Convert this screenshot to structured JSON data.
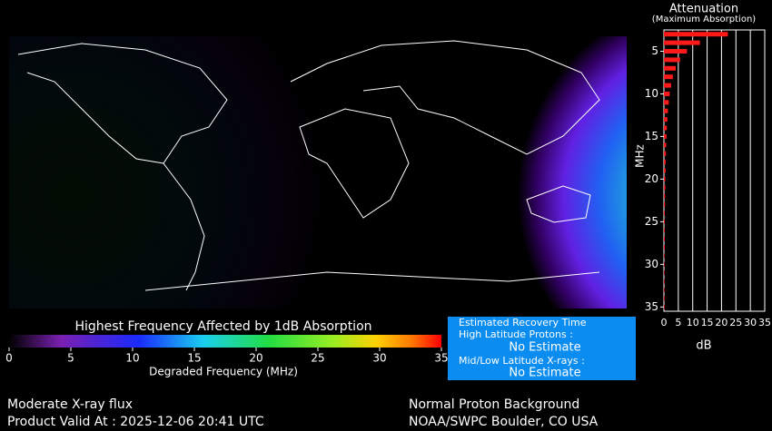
{
  "map": {
    "colorbar": {
      "title": "Highest Frequency Affected by 1dB Absorption",
      "lim": [
        0,
        35
      ],
      "ticks": [
        0,
        5,
        10,
        15,
        20,
        25,
        30,
        35
      ],
      "label": "Degraded Frequency (MHz)"
    }
  },
  "recovery": {
    "title": "Estimated Recovery Time",
    "items": [
      {
        "label": "High Latitude Protons :",
        "value": "No Estimate"
      },
      {
        "label": "Mid/Low Latitude X-rays :",
        "value": "No Estimate"
      }
    ]
  },
  "footer": {
    "left": [
      "Moderate X-ray flux",
      "Product Valid At : 2025-12-06 20:41 UTC"
    ],
    "right": [
      "Normal Proton Background",
      "NOAA/SWPC Boulder, CO USA"
    ]
  },
  "chart_data": {
    "type": "bar",
    "orientation": "horizontal",
    "title": "Attenuation",
    "subtitle": "(Maximum Absorption)",
    "x_label": "dB",
    "y_label": "MHz",
    "color": "#ff1a1a",
    "categories": [
      3,
      4,
      5,
      6,
      7,
      8,
      9,
      10,
      11,
      12,
      13,
      14,
      15,
      16,
      17,
      18,
      19,
      20,
      21,
      22,
      23,
      24,
      25,
      26,
      27,
      28,
      29,
      30,
      31,
      32,
      33,
      34,
      35
    ],
    "values": [
      22.2,
      12.5,
      8,
      5.6,
      4.1,
      3.1,
      2.5,
      2,
      1.7,
      1.4,
      1.2,
      1,
      0.9,
      0.8,
      0.7,
      0.6,
      0.6,
      0.5,
      0.5,
      0.4,
      0.4,
      0.3,
      0.3,
      0.3,
      0.3,
      0.3,
      0.2,
      0.2,
      0.2,
      0.2,
      0.2,
      0.2,
      0.2
    ],
    "xlim": [
      0,
      35
    ],
    "xticks": [
      0,
      5,
      10,
      15,
      20,
      25,
      30,
      35
    ],
    "ylim": [
      2.5,
      35.5
    ],
    "yticks": [
      5,
      10,
      15,
      20,
      25,
      30,
      35
    ],
    "y_inverted": true,
    "grid": true
  }
}
